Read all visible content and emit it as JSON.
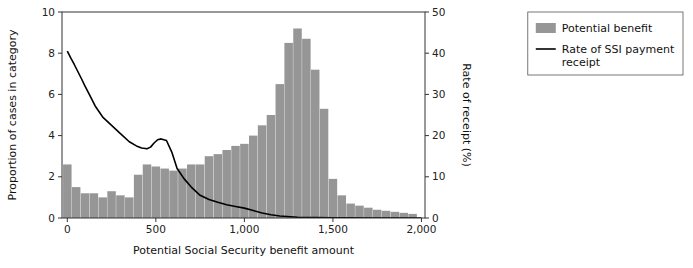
{
  "chart_data": {
    "type": "bar",
    "xlabel": "Potential Social Security benefit amount",
    "ylabel": "Proportion of cases in category",
    "y2label": "Rate of receipt (%)",
    "xlim": [
      -30,
      2020
    ],
    "xticks": [
      0,
      500,
      {
        "value": 1000,
        "label": "1,000"
      },
      {
        "value": 1500,
        "label": "1,500"
      },
      {
        "value": 2000,
        "label": "2,000"
      }
    ],
    "ylim": [
      0,
      10
    ],
    "yticks": [
      0,
      2,
      4,
      6,
      8,
      10
    ],
    "y2lim": [
      0,
      50
    ],
    "y2ticks": [
      0,
      10,
      20,
      30,
      40,
      50
    ],
    "grid": false,
    "legend": "upper right",
    "series": [
      {
        "name": "Potential benefit",
        "type": "bar",
        "color": "#969696",
        "x": [
          0,
          50,
          100,
          150,
          200,
          250,
          300,
          350,
          400,
          450,
          500,
          550,
          600,
          650,
          700,
          750,
          800,
          850,
          900,
          950,
          1000,
          1050,
          1100,
          1150,
          1200,
          1250,
          1300,
          1350,
          1400,
          1450,
          1500,
          1550,
          1600,
          1650,
          1700,
          1750,
          1800,
          1850,
          1900,
          1950
        ],
        "values": [
          2.6,
          1.5,
          1.2,
          1.2,
          1.0,
          1.3,
          1.1,
          1.0,
          2.1,
          2.6,
          2.5,
          2.4,
          2.3,
          2.4,
          2.6,
          2.6,
          3.0,
          3.1,
          3.3,
          3.5,
          3.6,
          4.0,
          4.5,
          5.0,
          6.5,
          8.5,
          9.2,
          8.7,
          7.2,
          5.3,
          1.9,
          1.1,
          0.7,
          0.6,
          0.5,
          0.4,
          0.35,
          0.3,
          0.25,
          0.2
        ]
      },
      {
        "name": "Rate of SSI payment\nreceipt",
        "type": "line",
        "axis": "y2",
        "color": "#000000",
        "x": [
          0,
          20,
          40,
          60,
          80,
          100,
          130,
          160,
          200,
          250,
          300,
          350,
          390,
          420,
          450,
          470,
          490,
          510,
          530,
          560,
          590,
          620,
          660,
          700,
          750,
          800,
          850,
          900,
          950,
          1000,
          1050,
          1100,
          1150,
          1200,
          1300,
          1400,
          1500,
          1600,
          1700,
          1800,
          1900,
          2000
        ],
        "values": [
          40.5,
          38.8,
          37.2,
          35.5,
          33.8,
          32.0,
          29.5,
          27.0,
          24.5,
          22.5,
          20.5,
          18.5,
          17.5,
          17.0,
          16.8,
          17.2,
          18.2,
          19.0,
          19.2,
          18.8,
          16.0,
          12.0,
          9.5,
          7.5,
          5.5,
          4.5,
          3.8,
          3.2,
          2.8,
          2.4,
          1.8,
          1.2,
          0.8,
          0.5,
          0.2,
          0.1,
          0.05,
          0.02,
          0.01,
          0.005,
          0.002,
          0.0
        ]
      }
    ]
  }
}
